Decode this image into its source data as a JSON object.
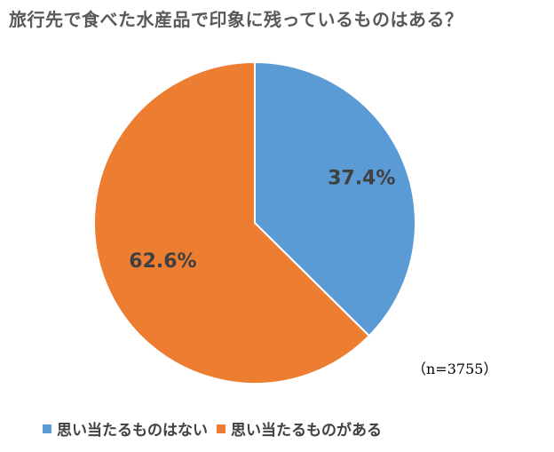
{
  "chart_data": {
    "type": "pie",
    "title": "旅行先で食べた水産品で印象に残っているものはある？",
    "categories": [
      "思い当たるものはない",
      "思い当たるものがある"
    ],
    "values": [
      37.4,
      62.6
    ],
    "value_labels": [
      "37.4%",
      "62.6%"
    ],
    "colors": [
      "#5b9bd5",
      "#ed7d31"
    ],
    "sample_size": "（n=3755）",
    "legend_position": "bottom"
  }
}
